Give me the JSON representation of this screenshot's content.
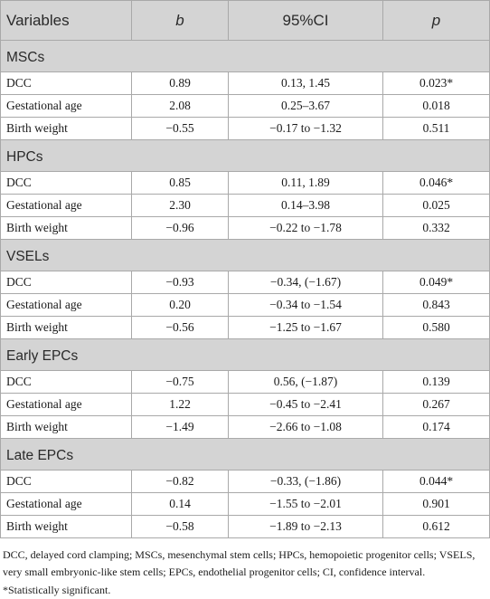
{
  "headers": [
    "Variables",
    "b",
    "95%CI",
    "p"
  ],
  "groups": [
    {
      "name": "MSCs",
      "rows": [
        [
          "DCC",
          "0.89",
          "0.13, 1.45",
          "0.023*"
        ],
        [
          "Gestational age",
          "2.08",
          "0.25–3.67",
          "0.018"
        ],
        [
          "Birth weight",
          "−0.55",
          "−0.17 to −1.32",
          "0.511"
        ]
      ]
    },
    {
      "name": "HPCs",
      "rows": [
        [
          "DCC",
          "0.85",
          "0.11, 1.89",
          "0.046*"
        ],
        [
          "Gestational age",
          "2.30",
          "0.14–3.98",
          "0.025"
        ],
        [
          "Birth weight",
          "−0.96",
          "−0.22 to −1.78",
          "0.332"
        ]
      ]
    },
    {
      "name": "VSELs",
      "rows": [
        [
          "DCC",
          "−0.93",
          "−0.34, (−1.67)",
          "0.049*"
        ],
        [
          "Gestational age",
          "0.20",
          "−0.34 to −1.54",
          "0.843"
        ],
        [
          "Birth weight",
          "−0.56",
          "−1.25 to −1.67",
          "0.580"
        ]
      ]
    },
    {
      "name": "Early EPCs",
      "rows": [
        [
          "DCC",
          "−0.75",
          "0.56, (−1.87)",
          "0.139"
        ],
        [
          "Gestational age",
          "1.22",
          "−0.45 to −2.41",
          "0.267"
        ],
        [
          "Birth weight",
          "−1.49",
          "−2.66 to −1.08",
          "0.174"
        ]
      ]
    },
    {
      "name": "Late EPCs",
      "rows": [
        [
          "DCC",
          "−0.82",
          "−0.33, (−1.86)",
          "0.044*"
        ],
        [
          "Gestational age",
          "0.14",
          "−1.55 to −2.01",
          "0.901"
        ],
        [
          "Birth weight",
          "−0.58",
          "−1.89 to −2.13",
          "0.612"
        ]
      ]
    }
  ],
  "footnotes": {
    "abbreviations": "DCC, delayed cord clamping; MSCs, mesenchymal stem cells; HPCs, hemopoietic progenitor cells; VSELS, very small embryonic-like stem cells; EPCs, endothelial progenitor cells; CI, confidence interval.",
    "significance": "*Statistically significant."
  }
}
